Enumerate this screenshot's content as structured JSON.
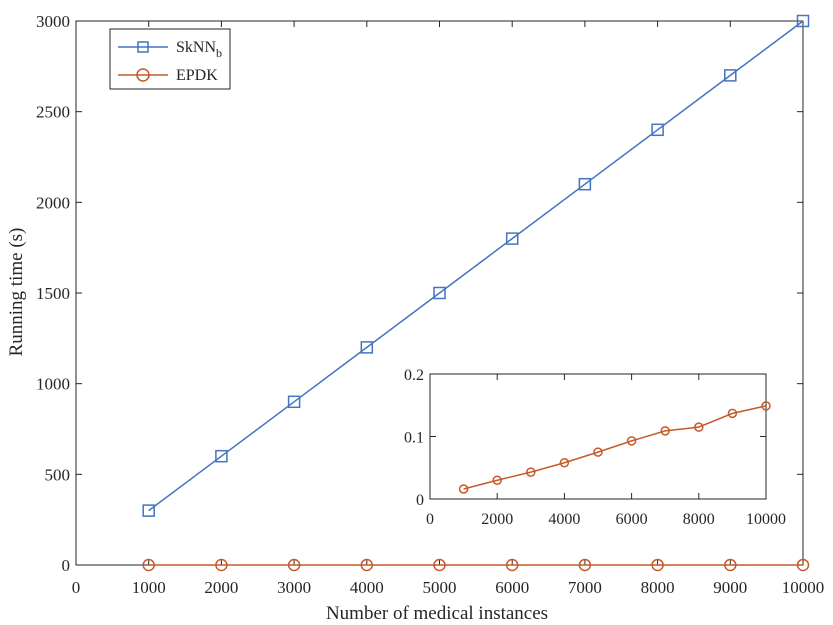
{
  "chart_data": [
    {
      "type": "line",
      "x": [
        1000,
        2000,
        3000,
        4000,
        5000,
        6000,
        7000,
        8000,
        9000,
        10000
      ],
      "series": [
        {
          "name": "SkNN",
          "name_subscript": "b",
          "color": "#4472C4",
          "marker": "square",
          "values": [
            300,
            600,
            900,
            1200,
            1500,
            1800,
            2100,
            2400,
            2700,
            3000
          ]
        },
        {
          "name": "EPDK",
          "color": "#C65A2B",
          "marker": "circle",
          "values": [
            0.016,
            0.03,
            0.043,
            0.058,
            0.075,
            0.093,
            0.109,
            0.115,
            0.137,
            0.149
          ]
        }
      ],
      "xlabel": "Number of medical instances",
      "ylabel": "Running time (s)",
      "xlim": [
        0,
        10000
      ],
      "ylim": [
        0,
        3000
      ],
      "xticks": [
        "0",
        "1000",
        "2000",
        "3000",
        "4000",
        "5000",
        "6000",
        "7000",
        "8000",
        "9000",
        "10000"
      ],
      "yticks": [
        "0",
        "500",
        "1000",
        "1500",
        "2000",
        "2500",
        "3000"
      ],
      "legend": "top-left",
      "grid": false
    },
    {
      "type": "line",
      "role": "inset",
      "x": [
        1000,
        2000,
        3000,
        4000,
        5000,
        6000,
        7000,
        8000,
        9000,
        10000
      ],
      "series": [
        {
          "color": "#C65A2B",
          "marker": "circle",
          "values": [
            0.016,
            0.03,
            0.043,
            0.058,
            0.075,
            0.093,
            0.109,
            0.115,
            0.137,
            0.149
          ]
        }
      ],
      "xlim": [
        0,
        10000
      ],
      "ylim": [
        0,
        0.2
      ],
      "xticks": [
        "0",
        "2000",
        "4000",
        "6000",
        "8000",
        "10000"
      ],
      "yticks": [
        "0",
        "0.1",
        "0.2"
      ],
      "grid": false
    }
  ]
}
